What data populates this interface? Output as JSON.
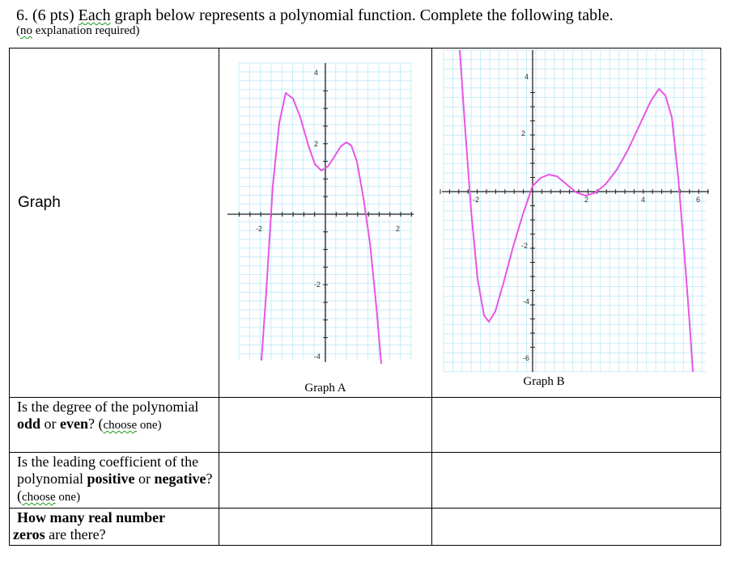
{
  "question": {
    "title_prefix": "6. (6 pts) ",
    "title_squiggle": "Each",
    "title_rest": " graph below represents a polynomial function. Complete the following table.",
    "note_open": "(",
    "note_squiggle": "no",
    "note_rest": " explanation required)"
  },
  "table": {
    "graph_row_label": "Graph",
    "graph_a_caption": "Graph A",
    "graph_b_caption": "Graph B",
    "row1": {
      "a": "Is the degree of the polynomial ",
      "b": "odd",
      "c": " or ",
      "d": "even",
      "e": "? (",
      "f": "choose",
      "g": " one)"
    },
    "row2": {
      "a": "Is the leading coefficient of the polynomial ",
      "b": "positive",
      "c": " or ",
      "d": "negative",
      "e": "? (",
      "f": "choose",
      "g": " one)"
    },
    "row3": {
      "a": "How many real number",
      "b": " zeros",
      "c": " are there?"
    }
  },
  "graphs": {
    "a": {
      "tick_labels": [
        "4",
        "2",
        "-2",
        "-4",
        "-2",
        "2"
      ]
    },
    "b": {
      "tick_labels": [
        "4",
        "2",
        "-2",
        "-4",
        "-6",
        "-2",
        "2",
        "4",
        "6"
      ]
    }
  },
  "colors": {
    "curve": "#e855e6",
    "grid": "#c8ecfa",
    "axis": "#222222"
  }
}
